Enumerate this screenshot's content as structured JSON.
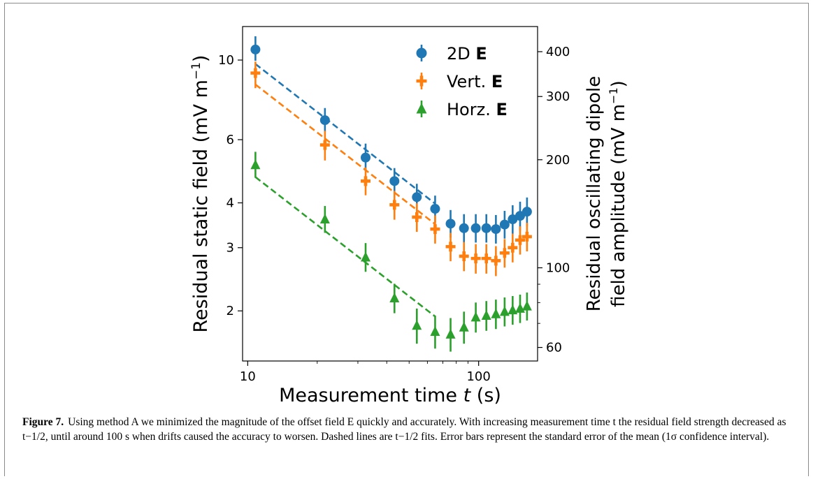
{
  "chart_data": {
    "type": "scatter",
    "x_scale": "log",
    "y_scale": "log",
    "xlim": [
      9.5,
      180
    ],
    "ylim": [
      1.45,
      12.4
    ],
    "y2lim": [
      55,
      470
    ],
    "xlabel_prefix": "Measurement time ",
    "xlabel_var": "t",
    "xlabel_suffix": " (s)",
    "ylabel": "Residual static field  (mV m",
    "ylabel_sup": "−1",
    "ylabel_end": ")",
    "y2label_line1": "Residual oscillating dipole",
    "y2label_line2": "field amplitude (mV m",
    "y2label_sup": "−1",
    "y2label_end": ")",
    "x_ticks": [
      {
        "value": 10,
        "label": "10"
      },
      {
        "value": 100,
        "label": "100"
      }
    ],
    "y_ticks": [
      {
        "value": 2,
        "label": "2"
      },
      {
        "value": 3,
        "label": "3"
      },
      {
        "value": 4,
        "label": "4"
      },
      {
        "value": 6,
        "label": "6"
      },
      {
        "value": 10,
        "label": "10"
      }
    ],
    "y2_ticks": [
      {
        "value": 60,
        "label": "60"
      },
      {
        "value": 100,
        "label": "100"
      },
      {
        "value": 200,
        "label": "200"
      },
      {
        "value": 300,
        "label": "300"
      },
      {
        "value": 400,
        "label": "400"
      }
    ],
    "x": [
      10.8,
      21.6,
      32.4,
      43.2,
      54,
      64.8,
      75.6,
      86.4,
      97.2,
      108,
      118.8,
      129.6,
      140.4,
      151.2,
      162
    ],
    "series": [
      {
        "name": "2D ",
        "name_bold": "E",
        "color": "#1f77b4",
        "marker": "circle",
        "values": [
          10.7,
          6.8,
          5.35,
          4.6,
          4.15,
          3.85,
          3.5,
          3.4,
          3.4,
          3.4,
          3.38,
          3.48,
          3.6,
          3.68,
          3.78
        ],
        "errors_low": [
          0.75,
          0.5,
          0.45,
          0.38,
          0.35,
          0.32,
          0.3,
          0.3,
          0.3,
          0.3,
          0.3,
          0.3,
          0.32,
          0.33,
          0.34
        ],
        "errors_high": [
          0.95,
          0.55,
          0.5,
          0.4,
          0.37,
          0.34,
          0.32,
          0.32,
          0.32,
          0.32,
          0.32,
          0.32,
          0.34,
          0.35,
          0.36
        ],
        "fit_x": [
          10.8,
          64.8
        ],
        "fit_y": [
          9.75,
          3.98
        ]
      },
      {
        "name": "Vert. ",
        "name_bold": "E",
        "color": "#ff7f0e",
        "marker": "plus",
        "values": [
          9.2,
          5.8,
          4.6,
          3.95,
          3.65,
          3.38,
          3.02,
          2.84,
          2.8,
          2.8,
          2.76,
          2.9,
          3.0,
          3.15,
          3.22
        ],
        "errors_low": [
          0.85,
          0.55,
          0.4,
          0.36,
          0.33,
          0.3,
          0.27,
          0.26,
          0.26,
          0.26,
          0.26,
          0.26,
          0.27,
          0.28,
          0.29
        ],
        "errors_high": [
          0.7,
          0.55,
          0.42,
          0.37,
          0.34,
          0.31,
          0.28,
          0.27,
          0.27,
          0.27,
          0.27,
          0.27,
          0.28,
          0.29,
          0.3
        ],
        "fit_x": [
          10.8,
          64.8
        ],
        "fit_y": [
          8.55,
          3.49
        ]
      },
      {
        "name": "Horz. ",
        "name_bold": "E",
        "color": "#2ca02c",
        "marker": "triangle",
        "values": [
          5.1,
          3.6,
          2.82,
          2.17,
          1.82,
          1.75,
          1.72,
          1.8,
          1.92,
          1.94,
          1.96,
          1.99,
          2.01,
          2.03,
          2.06
        ],
        "errors_low": [
          0.4,
          0.3,
          0.25,
          0.2,
          0.2,
          0.18,
          0.18,
          0.18,
          0.18,
          0.18,
          0.18,
          0.18,
          0.18,
          0.18,
          0.18
        ],
        "errors_high": [
          0.45,
          0.32,
          0.27,
          0.21,
          0.21,
          0.19,
          0.19,
          0.19,
          0.19,
          0.19,
          0.19,
          0.19,
          0.19,
          0.19,
          0.19
        ],
        "fit_x": [
          10.8,
          64.8
        ],
        "fit_y": [
          4.72,
          1.93
        ]
      }
    ],
    "legend_position": "top-right",
    "grid": false
  },
  "caption": {
    "label": "Figure 7.",
    "text": "Using method A we minimized the magnitude of the offset field E quickly and accurately. With increasing measurement time t the residual field strength decreased as t−1/2, until around 100 s when drifts caused the accuracy to worsen. Dashed lines are t−1/2 fits. Error bars represent the standard error of the mean (1σ confidence interval)."
  }
}
